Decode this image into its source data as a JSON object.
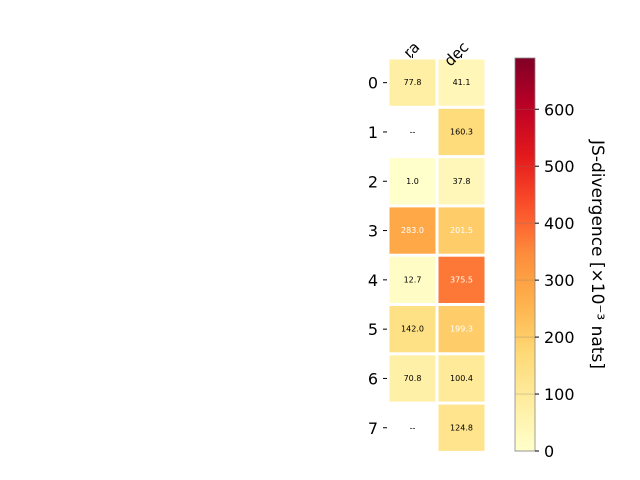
{
  "chart_data": {
    "type": "heatmap",
    "columns": [
      "ra",
      "dec"
    ],
    "rows": [
      "0",
      "1",
      "2",
      "3",
      "4",
      "5",
      "6",
      "7"
    ],
    "values": [
      [
        77.8,
        41.1
      ],
      [
        null,
        160.3
      ],
      [
        1.0,
        37.8
      ],
      [
        283.0,
        201.5
      ],
      [
        12.7,
        375.5
      ],
      [
        142.0,
        199.3
      ],
      [
        70.8,
        100.4
      ],
      [
        null,
        124.8
      ]
    ],
    "cell_labels": [
      [
        "77.8",
        "41.1"
      ],
      [
        "--",
        "160.3"
      ],
      [
        "1.0",
        "37.8"
      ],
      [
        "283.0",
        "201.5"
      ],
      [
        "12.7",
        "375.5"
      ],
      [
        "142.0",
        "199.3"
      ],
      [
        "70.8",
        "100.4"
      ],
      [
        "--",
        "124.8"
      ]
    ],
    "colorbar": {
      "label": "JS-divergence [×10⁻³ nats]",
      "range": [
        0,
        690
      ],
      "ticks": [
        "0",
        "100",
        "200",
        "300",
        "400",
        "500",
        "600"
      ],
      "colormap": "YlOrRd"
    },
    "missing_color": "#ffffff",
    "grid": false
  }
}
